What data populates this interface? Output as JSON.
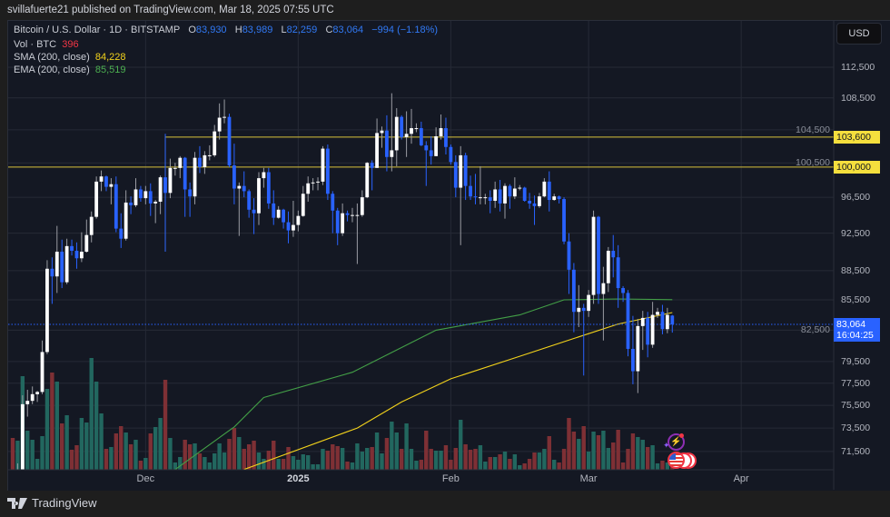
{
  "header": {
    "publisher_line": "svillafuerte21 published on TradingView.com, Mar 18, 2025 07:55 UTC"
  },
  "legend": {
    "symbol": "Bitcoin / U.S. Dollar · 1D · BITSTAMP",
    "open_label": "O",
    "open": "83,930",
    "high_label": "H",
    "high": "83,989",
    "low_label": "L",
    "low": "82,259",
    "close_label": "C",
    "close": "83,064",
    "change": "−994 (−1.18%)",
    "volume_label": "Vol · BTC",
    "volume": "396",
    "sma_label": "SMA (200, close)",
    "sma": "84,228",
    "ema_label": "EMA (200, close)",
    "ema": "85,519"
  },
  "currency_button": "USD",
  "price_tags": {
    "level_1": "103,600",
    "level_2": "100,000",
    "last_price": "83,064",
    "countdown": "16:04:25"
  },
  "footer": {
    "brand": "TradingView"
  },
  "colors": {
    "up": "#ffffff",
    "down": "#2962ff",
    "vol_up": "#22675f",
    "vol_down": "#7e3035",
    "sma": "#f2d21b",
    "ema": "#43a047",
    "hline": "#f5df3d",
    "last_price": "#2962ff"
  },
  "chart_data": {
    "type": "candlestick",
    "symbol": "BTCUSD",
    "interval": "1D",
    "y_scale": "log",
    "ylim": [
      70000,
      116000
    ],
    "y_ticks": [
      112500,
      108500,
      104500,
      100500,
      96500,
      92500,
      88500,
      85500,
      82500,
      79500,
      77500,
      75500,
      73500,
      71500
    ],
    "y_tick_labels": [
      "112,500",
      "108,500",
      "104,500",
      "100,500",
      "96,500",
      "92,500",
      "88,500",
      "85,500",
      "82,500",
      "79,500",
      "77,500",
      "75,500",
      "73,500",
      "71,500"
    ],
    "x_ticks": [
      {
        "date": "2024-12-01",
        "label": "Dec"
      },
      {
        "date": "2025-01-01",
        "label": "2025"
      },
      {
        "date": "2025-02-01",
        "label": "Feb"
      },
      {
        "date": "2025-03-01",
        "label": "Mar"
      },
      {
        "date": "2025-04-01",
        "label": "Apr"
      }
    ],
    "horizontal_levels": [
      103600,
      100000
    ],
    "last_price": 83064,
    "candle_columns": [
      "date",
      "open",
      "high",
      "low",
      "close",
      "volume"
    ],
    "candles": [
      [
        "2024-11-04",
        68700,
        69500,
        66800,
        67800,
        1050
      ],
      [
        "2024-11-05",
        67800,
        70500,
        67500,
        69400,
        960
      ],
      [
        "2024-11-06",
        69400,
        76400,
        69300,
        75600,
        3090
      ],
      [
        "2024-11-07",
        75600,
        76900,
        74500,
        75900,
        1290
      ],
      [
        "2024-11-08",
        75900,
        77200,
        75600,
        76500,
        990
      ],
      [
        "2024-11-09",
        76500,
        76800,
        75800,
        76700,
        360
      ],
      [
        "2024-11-10",
        76700,
        81500,
        76500,
        80400,
        1110
      ],
      [
        "2024-11-11",
        80400,
        89600,
        80200,
        88700,
        2670
      ],
      [
        "2024-11-12",
        88700,
        89900,
        85100,
        87900,
        3210
      ],
      [
        "2024-11-13",
        87900,
        93300,
        86200,
        90500,
        2910
      ],
      [
        "2024-11-14",
        90500,
        91800,
        86700,
        87300,
        1530
      ],
      [
        "2024-11-15",
        87300,
        91900,
        87100,
        91100,
        1800
      ],
      [
        "2024-11-16",
        91100,
        91800,
        90100,
        90600,
        660
      ],
      [
        "2024-11-17",
        90600,
        91500,
        88700,
        89800,
        810
      ],
      [
        "2024-11-18",
        89800,
        92600,
        89400,
        90500,
        1710
      ],
      [
        "2024-11-19",
        90500,
        94000,
        90400,
        92300,
        1560
      ],
      [
        "2024-11-20",
        92300,
        94900,
        91500,
        94300,
        3690
      ],
      [
        "2024-11-21",
        94300,
        98900,
        94100,
        98300,
        2910
      ],
      [
        "2024-11-22",
        98300,
        99600,
        97200,
        98900,
        1860
      ],
      [
        "2024-11-23",
        98900,
        99000,
        97200,
        97700,
        690
      ],
      [
        "2024-11-24",
        97700,
        98700,
        95700,
        98000,
        750
      ],
      [
        "2024-11-25",
        98000,
        98900,
        92600,
        93000,
        1200
      ],
      [
        "2024-11-26",
        93000,
        94700,
        90900,
        91900,
        1440
      ],
      [
        "2024-11-27",
        91900,
        97300,
        91700,
        95900,
        1230
      ],
      [
        "2024-11-28",
        95900,
        96600,
        94600,
        95600,
        840
      ],
      [
        "2024-11-29",
        95600,
        98700,
        95400,
        97400,
        990
      ],
      [
        "2024-11-30",
        97400,
        97800,
        96000,
        96400,
        300
      ],
      [
        "2024-12-01",
        96400,
        97800,
        95700,
        97200,
        390
      ],
      [
        "2024-12-02",
        97200,
        98100,
        94400,
        95800,
        1200
      ],
      [
        "2024-12-03",
        95800,
        96200,
        93600,
        96000,
        1410
      ],
      [
        "2024-12-04",
        96000,
        99000,
        94600,
        98800,
        1710
      ],
      [
        "2024-12-05",
        98800,
        104000,
        90500,
        97000,
        2970
      ],
      [
        "2024-12-06",
        97000,
        101000,
        96400,
        99900,
        1050
      ],
      [
        "2024-12-07",
        99900,
        100500,
        99000,
        99900,
        240
      ],
      [
        "2024-12-08",
        99900,
        101300,
        98700,
        101100,
        420
      ],
      [
        "2024-12-09",
        101100,
        101200,
        94300,
        97400,
        990
      ],
      [
        "2024-12-10",
        97400,
        98200,
        94300,
        96600,
        840
      ],
      [
        "2024-12-11",
        96600,
        101800,
        95700,
        101100,
        870
      ],
      [
        "2024-12-12",
        101100,
        102500,
        99300,
        100000,
        540
      ],
      [
        "2024-12-13",
        100000,
        101900,
        99200,
        101400,
        420
      ],
      [
        "2024-12-14",
        101400,
        102600,
        100800,
        101400,
        240
      ],
      [
        "2024-12-15",
        101400,
        105100,
        101200,
        104300,
        540
      ],
      [
        "2024-12-16",
        104300,
        107800,
        103300,
        106000,
        870
      ],
      [
        "2024-12-17",
        106000,
        108300,
        105300,
        106100,
        570
      ],
      [
        "2024-12-18",
        106100,
        106500,
        100000,
        100200,
        1020
      ],
      [
        "2024-12-19",
        100200,
        102800,
        95700,
        97500,
        1380
      ],
      [
        "2024-12-20",
        97500,
        98200,
        92200,
        97800,
        1080
      ],
      [
        "2024-12-21",
        97800,
        99500,
        96500,
        97200,
        690
      ],
      [
        "2024-12-22",
        97200,
        97400,
        94200,
        95100,
        840
      ],
      [
        "2024-12-23",
        95100,
        96400,
        92400,
        94700,
        960
      ],
      [
        "2024-12-24",
        94700,
        99400,
        93400,
        98700,
        570
      ],
      [
        "2024-12-25",
        98700,
        99900,
        97600,
        99400,
        360
      ],
      [
        "2024-12-26",
        99400,
        99900,
        95200,
        95800,
        630
      ],
      [
        "2024-12-27",
        95800,
        97300,
        93400,
        94200,
        960
      ],
      [
        "2024-12-28",
        94200,
        95500,
        94100,
        95100,
        360
      ],
      [
        "2024-12-29",
        95100,
        95200,
        93000,
        93700,
        360
      ],
      [
        "2024-12-30",
        93700,
        94900,
        91400,
        92800,
        750
      ],
      [
        "2024-12-31",
        92800,
        96100,
        92100,
        93400,
        450
      ],
      [
        "2025-01-01",
        93400,
        95000,
        92700,
        94400,
        330
      ],
      [
        "2025-01-02",
        94400,
        97800,
        94300,
        96900,
        510
      ],
      [
        "2025-01-03",
        96900,
        98900,
        96000,
        98100,
        480
      ],
      [
        "2025-01-04",
        98100,
        98700,
        97300,
        98200,
        180
      ],
      [
        "2025-01-05",
        98200,
        98800,
        97300,
        98300,
        180
      ],
      [
        "2025-01-06",
        98300,
        102500,
        97900,
        102200,
        690
      ],
      [
        "2025-01-07",
        102200,
        102700,
        96200,
        96900,
        630
      ],
      [
        "2025-01-08",
        96900,
        97200,
        92500,
        95000,
        840
      ],
      [
        "2025-01-09",
        95000,
        95300,
        91200,
        92500,
        780
      ],
      [
        "2025-01-10",
        92500,
        95800,
        92200,
        94700,
        720
      ],
      [
        "2025-01-11",
        94700,
        95000,
        93800,
        94500,
        270
      ],
      [
        "2025-01-12",
        94500,
        95300,
        93700,
        94500,
        240
      ],
      [
        "2025-01-13",
        94500,
        95800,
        89200,
        94500,
        870
      ],
      [
        "2025-01-14",
        94500,
        97300,
        94300,
        96500,
        600
      ],
      [
        "2025-01-15",
        96500,
        100600,
        96400,
        100500,
        720
      ],
      [
        "2025-01-16",
        100500,
        100800,
        97300,
        99900,
        750
      ],
      [
        "2025-01-17",
        99900,
        105900,
        99900,
        104100,
        1230
      ],
      [
        "2025-01-18",
        104100,
        104900,
        102300,
        104400,
        540
      ],
      [
        "2025-01-19",
        104400,
        106300,
        99500,
        101200,
        1050
      ],
      [
        "2025-01-20",
        101200,
        109100,
        99500,
        102000,
        1590
      ],
      [
        "2025-01-21",
        102000,
        107200,
        100100,
        106100,
        1230
      ],
      [
        "2025-01-22",
        106100,
        106300,
        103300,
        103600,
        690
      ],
      [
        "2025-01-23",
        103600,
        106800,
        101200,
        104000,
        1530
      ],
      [
        "2025-01-24",
        104000,
        107100,
        102800,
        104700,
        690
      ],
      [
        "2025-01-25",
        104700,
        105300,
        104200,
        104700,
        300
      ],
      [
        "2025-01-26",
        104700,
        105500,
        102500,
        102600,
        330
      ],
      [
        "2025-01-27",
        102600,
        103100,
        97800,
        102000,
        1290
      ],
      [
        "2025-01-28",
        102000,
        103700,
        100300,
        101300,
        690
      ],
      [
        "2025-01-29",
        101300,
        104800,
        101300,
        103700,
        630
      ],
      [
        "2025-01-30",
        103700,
        106400,
        103300,
        104700,
        630
      ],
      [
        "2025-01-31",
        104700,
        106000,
        101500,
        102400,
        810
      ],
      [
        "2025-02-01",
        102400,
        102700,
        100300,
        100600,
        330
      ],
      [
        "2025-02-02",
        100600,
        101400,
        96500,
        97600,
        720
      ],
      [
        "2025-02-03",
        97600,
        102500,
        91200,
        101400,
        1650
      ],
      [
        "2025-02-04",
        101400,
        101700,
        96200,
        97800,
        840
      ],
      [
        "2025-02-05",
        97800,
        99000,
        96200,
        96600,
        660
      ],
      [
        "2025-02-06",
        96600,
        99200,
        95700,
        96500,
        690
      ],
      [
        "2025-02-07",
        96500,
        100100,
        95700,
        96500,
        810
      ],
      [
        "2025-02-08",
        96500,
        96900,
        95700,
        96500,
        270
      ],
      [
        "2025-02-09",
        96500,
        97300,
        94700,
        96100,
        420
      ],
      [
        "2025-02-10",
        96100,
        98300,
        95300,
        97400,
        420
      ],
      [
        "2025-02-11",
        97400,
        98500,
        94900,
        95800,
        510
      ],
      [
        "2025-02-12",
        95800,
        98100,
        94100,
        97800,
        600
      ],
      [
        "2025-02-13",
        97800,
        98000,
        95200,
        96600,
        360
      ],
      [
        "2025-02-14",
        96600,
        98800,
        96300,
        97500,
        510
      ],
      [
        "2025-02-15",
        97500,
        97900,
        97300,
        97600,
        150
      ],
      [
        "2025-02-16",
        97600,
        97700,
        96000,
        96100,
        210
      ],
      [
        "2025-02-17",
        96100,
        97000,
        95200,
        95800,
        360
      ],
      [
        "2025-02-18",
        95800,
        96700,
        93400,
        95500,
        570
      ],
      [
        "2025-02-19",
        95500,
        97000,
        95300,
        96600,
        570
      ],
      [
        "2025-02-20",
        96600,
        98700,
        96500,
        98300,
        690
      ],
      [
        "2025-02-21",
        98300,
        99500,
        94900,
        96200,
        1110
      ],
      [
        "2025-02-22",
        96200,
        96900,
        96100,
        96600,
        330
      ],
      [
        "2025-02-23",
        96600,
        96700,
        95800,
        96300,
        240
      ],
      [
        "2025-02-24",
        96300,
        96500,
        91300,
        91600,
        690
      ],
      [
        "2025-02-25",
        91600,
        92500,
        86100,
        88600,
        1710
      ],
      [
        "2025-02-26",
        88600,
        89300,
        82300,
        84300,
        1260
      ],
      [
        "2025-02-27",
        84300,
        87000,
        82800,
        84700,
        1020
      ],
      [
        "2025-02-28",
        84700,
        85100,
        78200,
        84400,
        1440
      ],
      [
        "2025-03-01",
        84400,
        86500,
        83800,
        86000,
        600
      ],
      [
        "2025-03-02",
        86000,
        95000,
        85100,
        94300,
        1260
      ],
      [
        "2025-03-03",
        94300,
        94400,
        85100,
        86100,
        1140
      ],
      [
        "2025-03-04",
        86100,
        88900,
        81500,
        87200,
        1290
      ],
      [
        "2025-03-05",
        87200,
        91000,
        86300,
        90600,
        720
      ],
      [
        "2025-03-06",
        90600,
        92300,
        87800,
        89900,
        900
      ],
      [
        "2025-03-07",
        89900,
        91200,
        84700,
        86700,
        1320
      ],
      [
        "2025-03-08",
        86700,
        86900,
        85300,
        86200,
        240
      ],
      [
        "2025-03-09",
        86200,
        86500,
        80000,
        80700,
        690
      ],
      [
        "2025-03-10",
        80700,
        83900,
        77400,
        78600,
        1200
      ],
      [
        "2025-03-11",
        78600,
        83600,
        76600,
        82900,
        1080
      ],
      [
        "2025-03-12",
        82900,
        84400,
        80600,
        83700,
        990
      ],
      [
        "2025-03-13",
        83700,
        84300,
        79900,
        81100,
        750
      ],
      [
        "2025-03-14",
        81100,
        85300,
        80800,
        84000,
        810
      ],
      [
        "2025-03-15",
        84000,
        84700,
        83700,
        84300,
        210
      ],
      [
        "2025-03-16",
        84300,
        85000,
        82100,
        82600,
        300
      ],
      [
        "2025-03-17",
        82600,
        84700,
        82200,
        84000,
        240
      ],
      [
        "2025-03-18",
        83930,
        83989,
        82259,
        83064,
        396
      ]
    ],
    "series": [
      {
        "name": "SMA (200, close)",
        "points": [
          [
            "2024-12-21",
            70000
          ],
          [
            "2025-01-13",
            73500
          ],
          [
            "2025-01-22",
            75800
          ],
          [
            "2025-02-01",
            77900
          ],
          [
            "2025-02-15",
            80000
          ],
          [
            "2025-02-26",
            81700
          ],
          [
            "2025-03-07",
            83100
          ],
          [
            "2025-03-18",
            84228
          ]
        ]
      },
      {
        "name": "EMA (200, close)",
        "points": [
          [
            "2024-12-07",
            70000
          ],
          [
            "2024-12-19",
            73600
          ],
          [
            "2024-12-25",
            76200
          ],
          [
            "2025-01-12",
            78500
          ],
          [
            "2025-01-29",
            82500
          ],
          [
            "2025-02-15",
            84000
          ],
          [
            "2025-02-24",
            85500
          ],
          [
            "2025-03-07",
            85600
          ],
          [
            "2025-03-18",
            85519
          ]
        ]
      }
    ]
  }
}
